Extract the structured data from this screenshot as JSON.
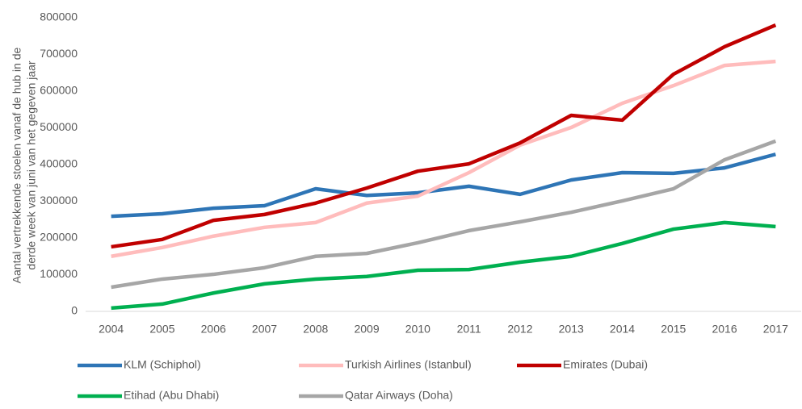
{
  "chart_data": {
    "type": "line",
    "y_label": [
      "Aantal vertrekkende stoelen vanaf de hub in de",
      "derde week van juni van het gegeven jaar"
    ],
    "categories": [
      "2004",
      "2005",
      "2006",
      "2007",
      "2008",
      "2009",
      "2010",
      "2011",
      "2012",
      "2013",
      "2014",
      "2015",
      "2016",
      "2017"
    ],
    "ylim": [
      0,
      800000
    ],
    "yticks": [
      0,
      100000,
      200000,
      300000,
      400000,
      500000,
      600000,
      700000,
      800000
    ],
    "grid": false,
    "legend": "bottom",
    "series": [
      {
        "name": "KLM (Schiphol)",
        "color": "#2e75b6",
        "values": [
          259000,
          266000,
          281000,
          288000,
          334000,
          316000,
          323000,
          341000,
          319000,
          358000,
          378000,
          376000,
          391000,
          428000
        ]
      },
      {
        "name": "Turkish Airlines (Istanbul)",
        "color": "#ffbcbc",
        "values": [
          150000,
          174000,
          205000,
          229000,
          242000,
          295000,
          314000,
          378000,
          453000,
          501000,
          567000,
          615000,
          670000,
          681000
        ]
      },
      {
        "name": "Emirates (Dubai)",
        "color": "#c00000",
        "values": [
          176000,
          196000,
          248000,
          264000,
          295000,
          336000,
          382000,
          402000,
          459000,
          534000,
          521000,
          646000,
          721000,
          780000
        ]
      },
      {
        "name": "Etihad (Abu Dhabi)",
        "color": "#00b050",
        "values": [
          9000,
          20000,
          50000,
          75000,
          88000,
          95000,
          112000,
          114000,
          134000,
          150000,
          185000,
          224000,
          242000,
          231000
        ]
      },
      {
        "name": "Qatar Airways (Doha)",
        "color": "#a6a6a6",
        "values": [
          66000,
          88000,
          101000,
          119000,
          150000,
          158000,
          187000,
          220000,
          244000,
          270000,
          301000,
          334000,
          413000,
          464000
        ]
      }
    ]
  }
}
